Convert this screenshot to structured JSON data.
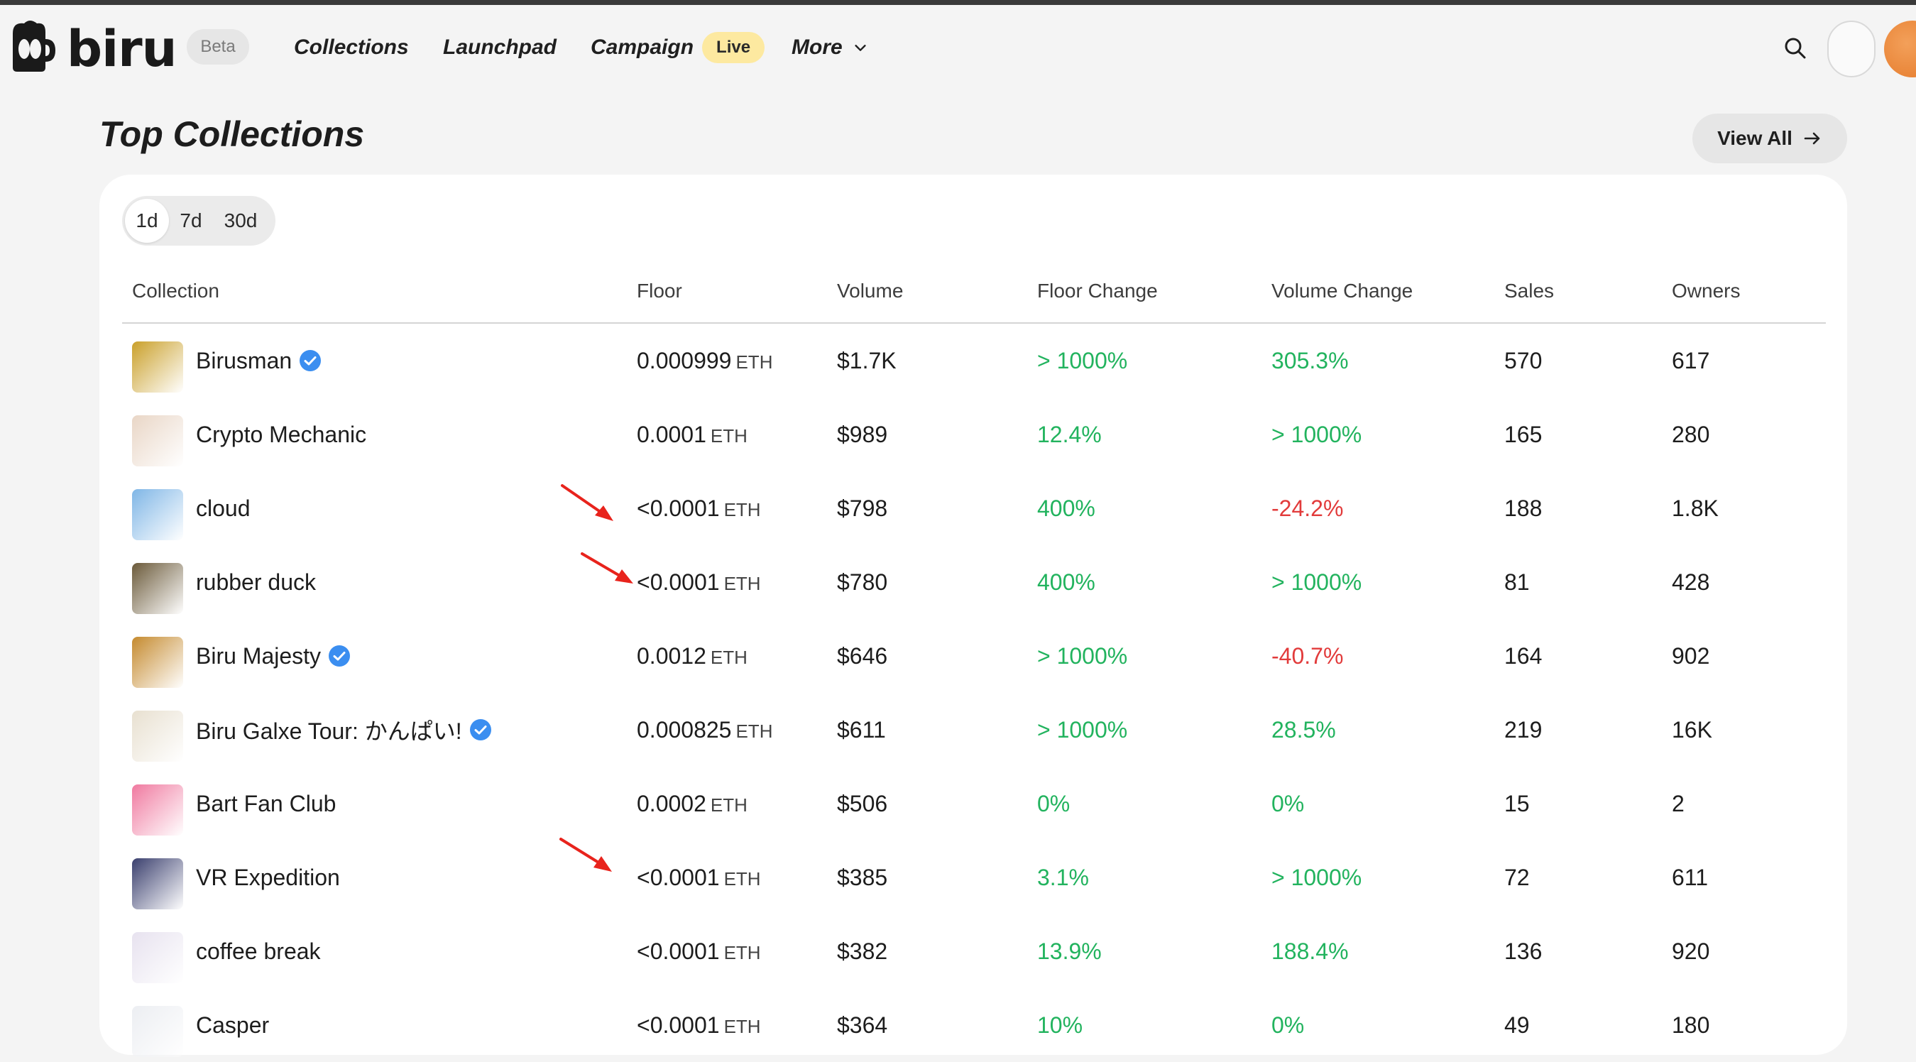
{
  "header": {
    "logo_text": "biru",
    "beta_label": "Beta",
    "nav": {
      "collections": "Collections",
      "launchpad": "Launchpad",
      "campaign": "Campaign",
      "campaign_badge": "Live",
      "more": "More"
    }
  },
  "section": {
    "title": "Top Collections",
    "view_all": "View All"
  },
  "period_tabs": [
    "1d",
    "7d",
    "30d"
  ],
  "period_selected": "1d",
  "table": {
    "columns": [
      "Collection",
      "Floor",
      "Volume",
      "Floor Change",
      "Volume Change",
      "Sales",
      "Owners"
    ],
    "rows": [
      {
        "name": "Birusman",
        "verified": true,
        "floor": "0.000999",
        "unit": "ETH",
        "volume": "$1.7K",
        "floor_change": "> 1000%",
        "floor_dir": "up",
        "volume_change": "305.3%",
        "volume_dir": "up",
        "sales": "570",
        "owners": "617",
        "thumb_color": "#caa02a"
      },
      {
        "name": "Crypto Mechanic",
        "verified": false,
        "floor": "0.0001",
        "unit": "ETH",
        "volume": "$989",
        "floor_change": "12.4%",
        "floor_dir": "up",
        "volume_change": "> 1000%",
        "volume_dir": "up",
        "sales": "165",
        "owners": "280",
        "thumb_color": "#e9d6c6"
      },
      {
        "name": "cloud",
        "verified": false,
        "floor": "<0.0001",
        "unit": "ETH",
        "volume": "$798",
        "floor_change": "400%",
        "floor_dir": "up",
        "volume_change": "-24.2%",
        "volume_dir": "down",
        "sales": "188",
        "owners": "1.8K",
        "thumb_color": "#7fb6e6"
      },
      {
        "name": "rubber duck",
        "verified": false,
        "floor": "<0.0001",
        "unit": "ETH",
        "volume": "$780",
        "floor_change": "400%",
        "floor_dir": "up",
        "volume_change": "> 1000%",
        "volume_dir": "up",
        "sales": "81",
        "owners": "428",
        "thumb_color": "#6b5a3a"
      },
      {
        "name": "Biru Majesty",
        "verified": true,
        "floor": "0.0012",
        "unit": "ETH",
        "volume": "$646",
        "floor_change": "> 1000%",
        "floor_dir": "up",
        "volume_change": "-40.7%",
        "volume_dir": "down",
        "sales": "164",
        "owners": "902",
        "thumb_color": "#c58a2e"
      },
      {
        "name": "Biru Galxe Tour: かんぱい!",
        "verified": true,
        "floor": "0.000825",
        "unit": "ETH",
        "volume": "$611",
        "floor_change": "> 1000%",
        "floor_dir": "up",
        "volume_change": "28.5%",
        "volume_dir": "up",
        "sales": "219",
        "owners": "16K",
        "thumb_color": "#e8e0d0"
      },
      {
        "name": "Bart Fan Club",
        "verified": false,
        "floor": "0.0002",
        "unit": "ETH",
        "volume": "$506",
        "floor_change": "0%",
        "floor_dir": "up",
        "volume_change": "0%",
        "volume_dir": "up",
        "sales": "15",
        "owners": "2",
        "thumb_color": "#f07aa0"
      },
      {
        "name": "VR Expedition",
        "verified": false,
        "floor": "<0.0001",
        "unit": "ETH",
        "volume": "$385",
        "floor_change": "3.1%",
        "floor_dir": "up",
        "volume_change": "> 1000%",
        "volume_dir": "up",
        "sales": "72",
        "owners": "611",
        "thumb_color": "#3a3f6e"
      },
      {
        "name": "coffee break",
        "verified": false,
        "floor": "<0.0001",
        "unit": "ETH",
        "volume": "$382",
        "floor_change": "13.9%",
        "floor_dir": "up",
        "volume_change": "188.4%",
        "volume_dir": "up",
        "sales": "136",
        "owners": "920",
        "thumb_color": "#e7e2ef"
      },
      {
        "name": "Casper",
        "verified": false,
        "floor": "<0.0001",
        "unit": "ETH",
        "volume": "$364",
        "floor_change": "10%",
        "floor_dir": "up",
        "volume_change": "0%",
        "volume_dir": "up",
        "sales": "49",
        "owners": "180",
        "thumb_color": "#eceef2"
      }
    ]
  },
  "colors": {
    "positive": "#22b35e",
    "negative": "#e23b3b",
    "annotation_arrow": "#e8231c",
    "live_badge": "#fde9a0"
  }
}
